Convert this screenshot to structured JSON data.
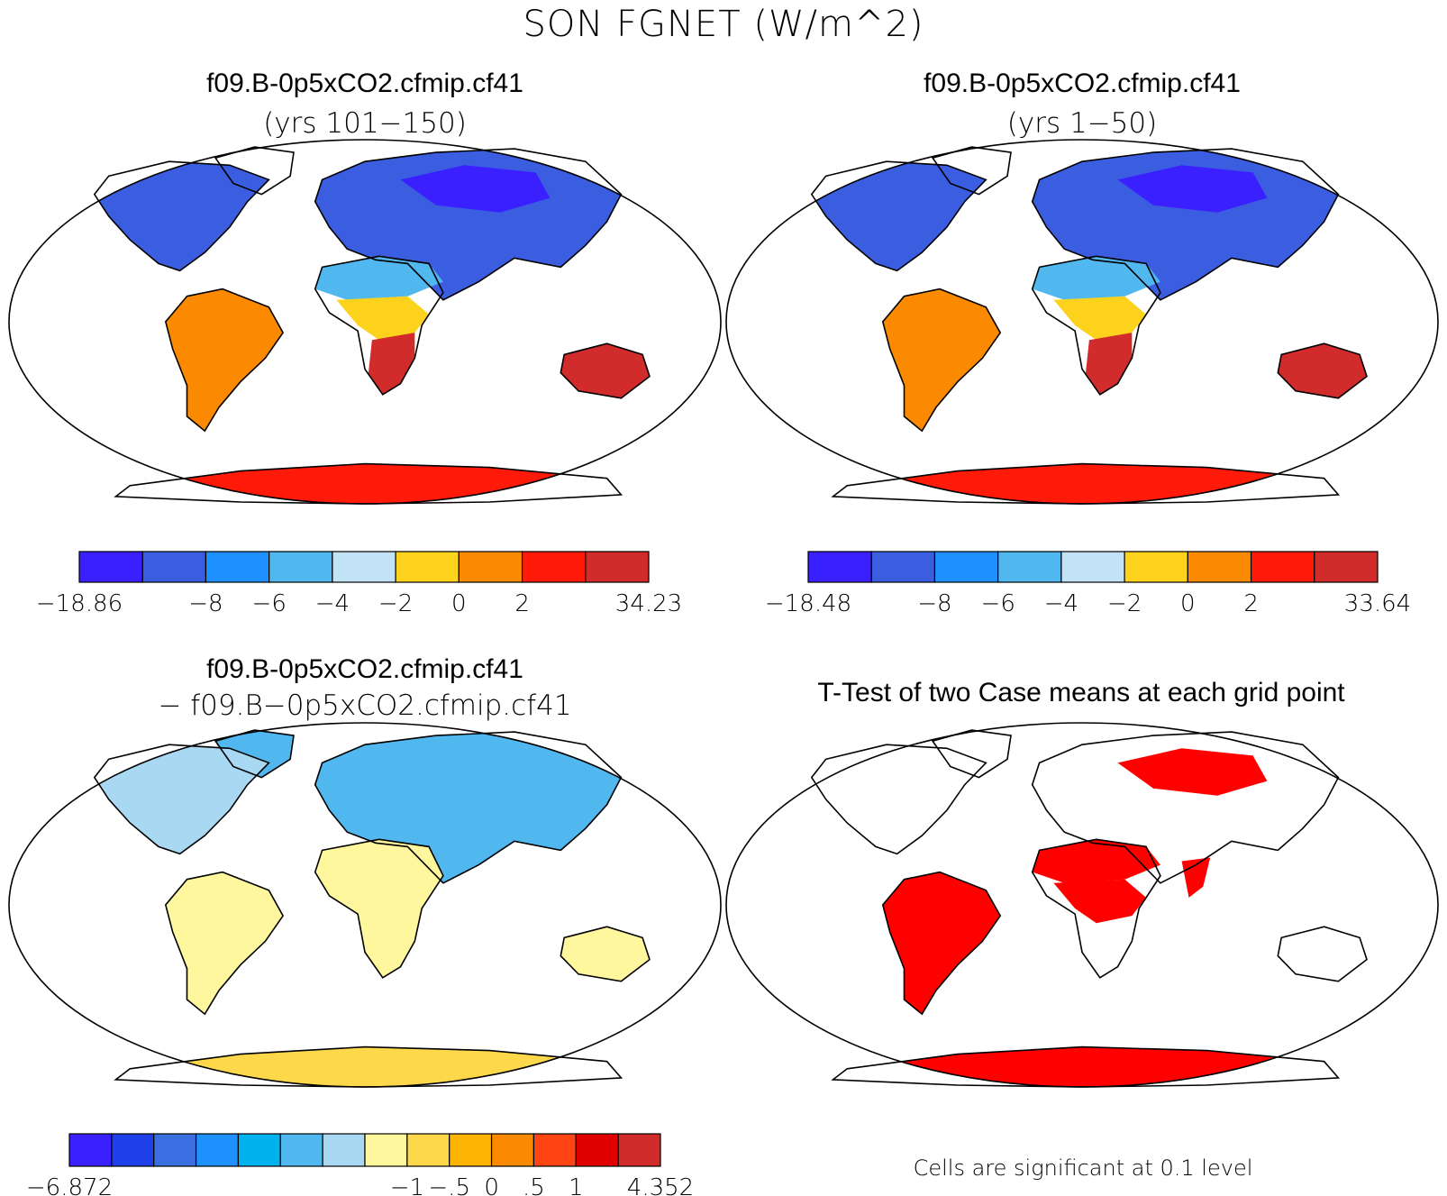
{
  "figure": {
    "title": "SON FGNET (W/m^2)",
    "footnote": "Cells are significant at 0.1 level"
  },
  "chart_data": [
    {
      "type": "heatmap",
      "projection": "Robinson world map",
      "title": "f09.B-0p5xCO2.cfmip.cf41",
      "subtitle": "(yrs 101−150)",
      "colorbar": {
        "tick_labels": [
          "−18.86",
          "−8",
          "−6",
          "−4",
          "−2",
          "0",
          "2",
          "34.23"
        ],
        "colors": [
          "#3a1fff",
          "#3b5ee0",
          "#1e90ff",
          "#50b7ef",
          "#c2e3f5",
          "#fdd21c",
          "#fb8a00",
          "#ff1a0a",
          "#d22b2b"
        ],
        "range": [
          -18.86,
          34.23
        ]
      },
      "regions": [
        {
          "name": "North America",
          "level": 1
        },
        {
          "name": "Eurasia",
          "level": 1
        },
        {
          "name": "Siberia",
          "level": 0
        },
        {
          "name": "North Africa",
          "level": 3
        },
        {
          "name": "Central Africa",
          "level": 5
        },
        {
          "name": "Southern Africa",
          "level": 8
        },
        {
          "name": "South America",
          "level": 6
        },
        {
          "name": "Australia",
          "level": 8
        },
        {
          "name": "Antarctica",
          "level": 7
        }
      ]
    },
    {
      "type": "heatmap",
      "projection": "Robinson world map",
      "title": "f09.B-0p5xCO2.cfmip.cf41",
      "subtitle": "(yrs 1−50)",
      "colorbar": {
        "tick_labels": [
          "−18.48",
          "−8",
          "−6",
          "−4",
          "−2",
          "0",
          "2",
          "33.64"
        ],
        "colors": [
          "#3a1fff",
          "#3b5ee0",
          "#1e90ff",
          "#50b7ef",
          "#c2e3f5",
          "#fdd21c",
          "#fb8a00",
          "#ff1a0a",
          "#d22b2b"
        ],
        "range": [
          -18.48,
          33.64
        ]
      },
      "regions": [
        {
          "name": "North America",
          "level": 1
        },
        {
          "name": "Eurasia",
          "level": 1
        },
        {
          "name": "Siberia",
          "level": 0
        },
        {
          "name": "North Africa",
          "level": 3
        },
        {
          "name": "Central Africa",
          "level": 5
        },
        {
          "name": "Southern Africa",
          "level": 8
        },
        {
          "name": "South America",
          "level": 6
        },
        {
          "name": "Australia",
          "level": 8
        },
        {
          "name": "Antarctica",
          "level": 7
        }
      ]
    },
    {
      "type": "heatmap",
      "projection": "Robinson world map",
      "title": "f09.B-0p5xCO2.cfmip.cf41",
      "subtitle": "− f09.B−0p5xCO2.cfmip.cf41",
      "colorbar": {
        "tick_labels": [
          "−6.872",
          "−1",
          "−.5",
          "0",
          ".5",
          "1",
          "4.352"
        ],
        "colors": [
          "#3a1fff",
          "#1f3fe8",
          "#3b6ee0",
          "#1e90ff",
          "#00b2ee",
          "#50b7ef",
          "#a9d8f2",
          "#fff79e",
          "#fdd84a",
          "#fdb400",
          "#fb8a00",
          "#ff4513",
          "#e00000",
          "#d22b2b"
        ],
        "range": [
          -6.872,
          4.352
        ]
      },
      "regions": [
        {
          "name": "North America",
          "level": 6
        },
        {
          "name": "Eurasia",
          "level": 5
        },
        {
          "name": "Africa",
          "level": 7
        },
        {
          "name": "South America",
          "level": 7
        },
        {
          "name": "Australia",
          "level": 7
        },
        {
          "name": "Antarctica",
          "level": 8
        }
      ]
    },
    {
      "type": "heatmap",
      "projection": "Robinson world map",
      "title": "T-Test of two Case means at each grid point",
      "colors": [
        "#ff0000"
      ],
      "significant_regions": [
        "Antarctica",
        "Central Africa",
        "South America",
        "Siberia",
        "India",
        "North Africa"
      ]
    }
  ]
}
